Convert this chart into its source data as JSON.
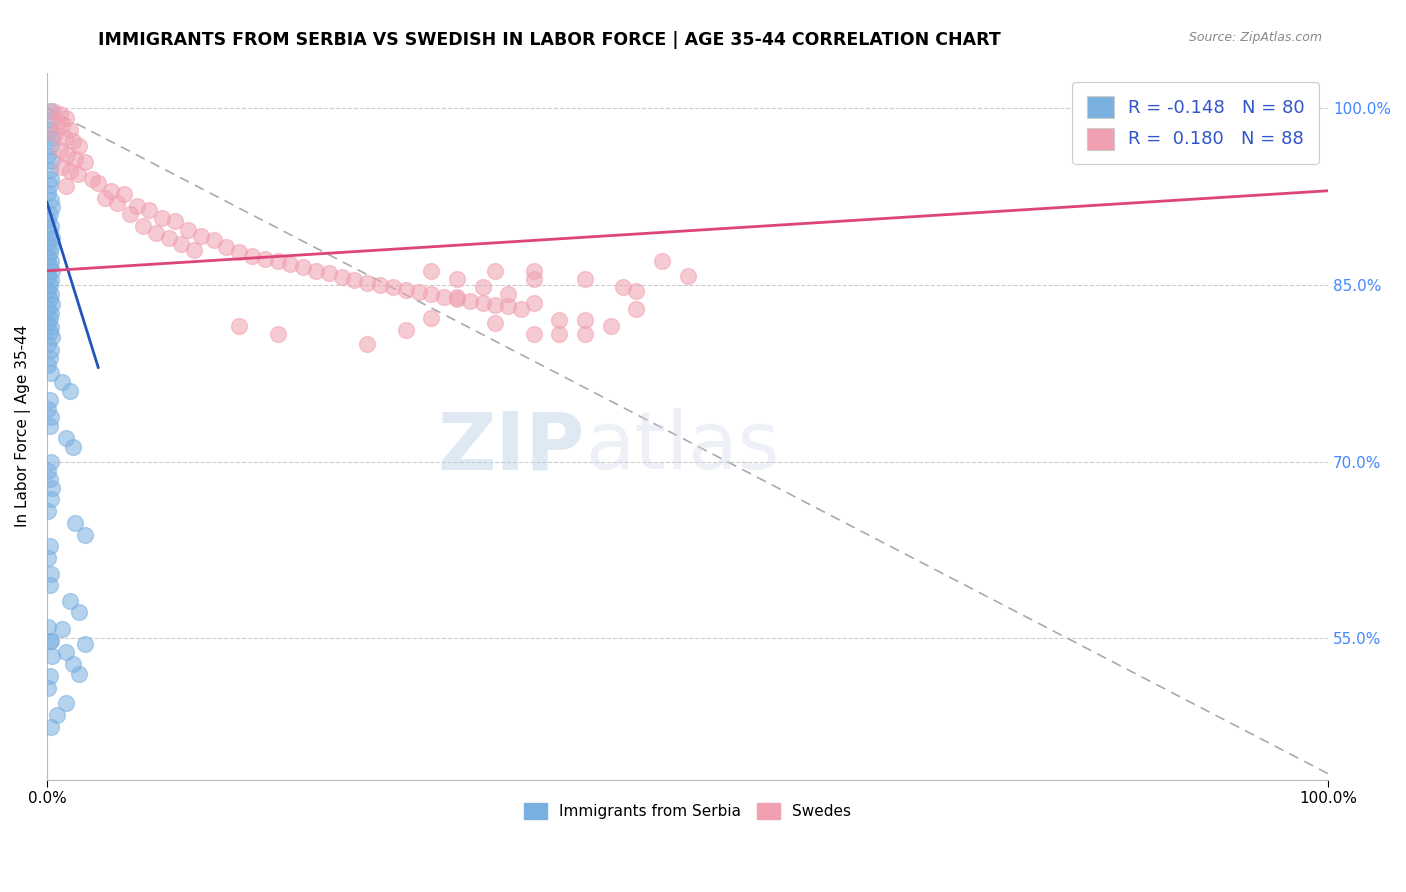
{
  "title": "IMMIGRANTS FROM SERBIA VS SWEDISH IN LABOR FORCE | AGE 35-44 CORRELATION CHART",
  "source": "Source: ZipAtlas.com",
  "ylabel": "In Labor Force | Age 35-44",
  "x_min": 0.0,
  "x_max": 1.0,
  "y_min": 0.43,
  "y_max": 1.03,
  "y_ticks": [
    0.55,
    0.7,
    0.85,
    1.0
  ],
  "y_tick_labels": [
    "55.0%",
    "70.0%",
    "85.0%",
    "100.0%"
  ],
  "x_tick_labels": [
    "0.0%",
    "100.0%"
  ],
  "x_ticks": [
    0.0,
    1.0
  ],
  "legend_labels": [
    "Immigrants from Serbia",
    "Swedes"
  ],
  "r_blue": -0.148,
  "n_blue": 80,
  "r_pink": 0.18,
  "n_pink": 88,
  "blue_color": "#7ab0e0",
  "pink_color": "#f0a0b0",
  "blue_line_color": "#2255bb",
  "pink_line_color": "#dd4477",
  "blue_scatter": [
    [
      0.002,
      0.998
    ],
    [
      0.003,
      0.99
    ],
    [
      0.002,
      0.982
    ],
    [
      0.004,
      0.975
    ],
    [
      0.003,
      0.968
    ],
    [
      0.001,
      0.96
    ],
    [
      0.004,
      0.955
    ],
    [
      0.002,
      0.948
    ],
    [
      0.003,
      0.94
    ],
    [
      0.002,
      0.935
    ],
    [
      0.001,
      0.928
    ],
    [
      0.003,
      0.922
    ],
    [
      0.004,
      0.916
    ],
    [
      0.002,
      0.91
    ],
    [
      0.001,
      0.905
    ],
    [
      0.003,
      0.9
    ],
    [
      0.002,
      0.895
    ],
    [
      0.004,
      0.89
    ],
    [
      0.001,
      0.886
    ],
    [
      0.003,
      0.882
    ],
    [
      0.002,
      0.878
    ],
    [
      0.001,
      0.874
    ],
    [
      0.003,
      0.87
    ],
    [
      0.002,
      0.866
    ],
    [
      0.004,
      0.862
    ],
    [
      0.001,
      0.858
    ],
    [
      0.003,
      0.854
    ],
    [
      0.002,
      0.85
    ],
    [
      0.001,
      0.846
    ],
    [
      0.003,
      0.842
    ],
    [
      0.002,
      0.838
    ],
    [
      0.004,
      0.834
    ],
    [
      0.001,
      0.83
    ],
    [
      0.003,
      0.826
    ],
    [
      0.002,
      0.822
    ],
    [
      0.001,
      0.818
    ],
    [
      0.003,
      0.814
    ],
    [
      0.002,
      0.81
    ],
    [
      0.004,
      0.806
    ],
    [
      0.001,
      0.8
    ],
    [
      0.003,
      0.795
    ],
    [
      0.002,
      0.788
    ],
    [
      0.001,
      0.782
    ],
    [
      0.003,
      0.775
    ],
    [
      0.012,
      0.768
    ],
    [
      0.018,
      0.76
    ],
    [
      0.002,
      0.752
    ],
    [
      0.001,
      0.745
    ],
    [
      0.003,
      0.738
    ],
    [
      0.002,
      0.73
    ],
    [
      0.015,
      0.72
    ],
    [
      0.02,
      0.712
    ],
    [
      0.003,
      0.7
    ],
    [
      0.001,
      0.692
    ],
    [
      0.002,
      0.685
    ],
    [
      0.004,
      0.678
    ],
    [
      0.003,
      0.668
    ],
    [
      0.001,
      0.658
    ],
    [
      0.022,
      0.648
    ],
    [
      0.03,
      0.638
    ],
    [
      0.002,
      0.628
    ],
    [
      0.001,
      0.618
    ],
    [
      0.003,
      0.605
    ],
    [
      0.002,
      0.595
    ],
    [
      0.018,
      0.582
    ],
    [
      0.025,
      0.572
    ],
    [
      0.001,
      0.56
    ],
    [
      0.003,
      0.548
    ],
    [
      0.015,
      0.538
    ],
    [
      0.02,
      0.528
    ],
    [
      0.002,
      0.518
    ],
    [
      0.001,
      0.508
    ],
    [
      0.015,
      0.495
    ],
    [
      0.008,
      0.485
    ],
    [
      0.025,
      0.52
    ],
    [
      0.003,
      0.475
    ],
    [
      0.002,
      0.548
    ],
    [
      0.012,
      0.558
    ],
    [
      0.03,
      0.545
    ],
    [
      0.004,
      0.535
    ]
  ],
  "pink_scatter": [
    [
      0.005,
      0.998
    ],
    [
      0.01,
      0.995
    ],
    [
      0.015,
      0.992
    ],
    [
      0.008,
      0.988
    ],
    [
      0.012,
      0.985
    ],
    [
      0.018,
      0.982
    ],
    [
      0.006,
      0.978
    ],
    [
      0.014,
      0.975
    ],
    [
      0.02,
      0.972
    ],
    [
      0.025,
      0.968
    ],
    [
      0.01,
      0.965
    ],
    [
      0.016,
      0.96
    ],
    [
      0.022,
      0.957
    ],
    [
      0.03,
      0.954
    ],
    [
      0.012,
      0.95
    ],
    [
      0.018,
      0.947
    ],
    [
      0.024,
      0.944
    ],
    [
      0.035,
      0.94
    ],
    [
      0.04,
      0.937
    ],
    [
      0.015,
      0.934
    ],
    [
      0.05,
      0.93
    ],
    [
      0.06,
      0.927
    ],
    [
      0.045,
      0.924
    ],
    [
      0.055,
      0.92
    ],
    [
      0.07,
      0.917
    ],
    [
      0.08,
      0.914
    ],
    [
      0.065,
      0.91
    ],
    [
      0.09,
      0.907
    ],
    [
      0.1,
      0.904
    ],
    [
      0.075,
      0.9
    ],
    [
      0.11,
      0.897
    ],
    [
      0.085,
      0.894
    ],
    [
      0.12,
      0.892
    ],
    [
      0.095,
      0.89
    ],
    [
      0.13,
      0.888
    ],
    [
      0.105,
      0.885
    ],
    [
      0.14,
      0.882
    ],
    [
      0.115,
      0.88
    ],
    [
      0.15,
      0.878
    ],
    [
      0.16,
      0.875
    ],
    [
      0.17,
      0.872
    ],
    [
      0.18,
      0.87
    ],
    [
      0.19,
      0.868
    ],
    [
      0.2,
      0.865
    ],
    [
      0.21,
      0.862
    ],
    [
      0.22,
      0.86
    ],
    [
      0.23,
      0.857
    ],
    [
      0.24,
      0.854
    ],
    [
      0.25,
      0.852
    ],
    [
      0.26,
      0.85
    ],
    [
      0.27,
      0.848
    ],
    [
      0.28,
      0.846
    ],
    [
      0.29,
      0.844
    ],
    [
      0.3,
      0.842
    ],
    [
      0.31,
      0.84
    ],
    [
      0.32,
      0.838
    ],
    [
      0.33,
      0.836
    ],
    [
      0.34,
      0.835
    ],
    [
      0.35,
      0.833
    ],
    [
      0.36,
      0.832
    ],
    [
      0.15,
      0.815
    ],
    [
      0.18,
      0.808
    ],
    [
      0.25,
      0.8
    ],
    [
      0.3,
      0.822
    ],
    [
      0.28,
      0.812
    ],
    [
      0.32,
      0.84
    ],
    [
      0.38,
      0.855
    ],
    [
      0.38,
      0.835
    ],
    [
      0.45,
      0.848
    ],
    [
      0.5,
      0.858
    ],
    [
      0.42,
      0.82
    ],
    [
      0.46,
      0.83
    ],
    [
      0.35,
      0.818
    ],
    [
      0.38,
      0.808
    ],
    [
      0.38,
      0.862
    ],
    [
      0.42,
      0.808
    ],
    [
      0.34,
      0.848
    ],
    [
      0.36,
      0.842
    ],
    [
      0.32,
      0.855
    ],
    [
      0.4,
      0.82
    ],
    [
      0.37,
      0.83
    ],
    [
      0.42,
      0.855
    ],
    [
      0.46,
      0.845
    ],
    [
      0.48,
      0.87
    ],
    [
      0.4,
      0.808
    ],
    [
      0.44,
      0.815
    ],
    [
      0.35,
      0.862
    ],
    [
      0.3,
      0.862
    ]
  ],
  "diag_line_x": [
    0.0,
    1.0
  ],
  "diag_line_y_start": 1.0,
  "diag_line_y_end": 0.43,
  "watermark_zip": "ZIP",
  "watermark_atlas": "atlas",
  "background_color": "#ffffff",
  "grid_color": "#cccccc",
  "title_color": "#000000",
  "source_color": "#888888"
}
